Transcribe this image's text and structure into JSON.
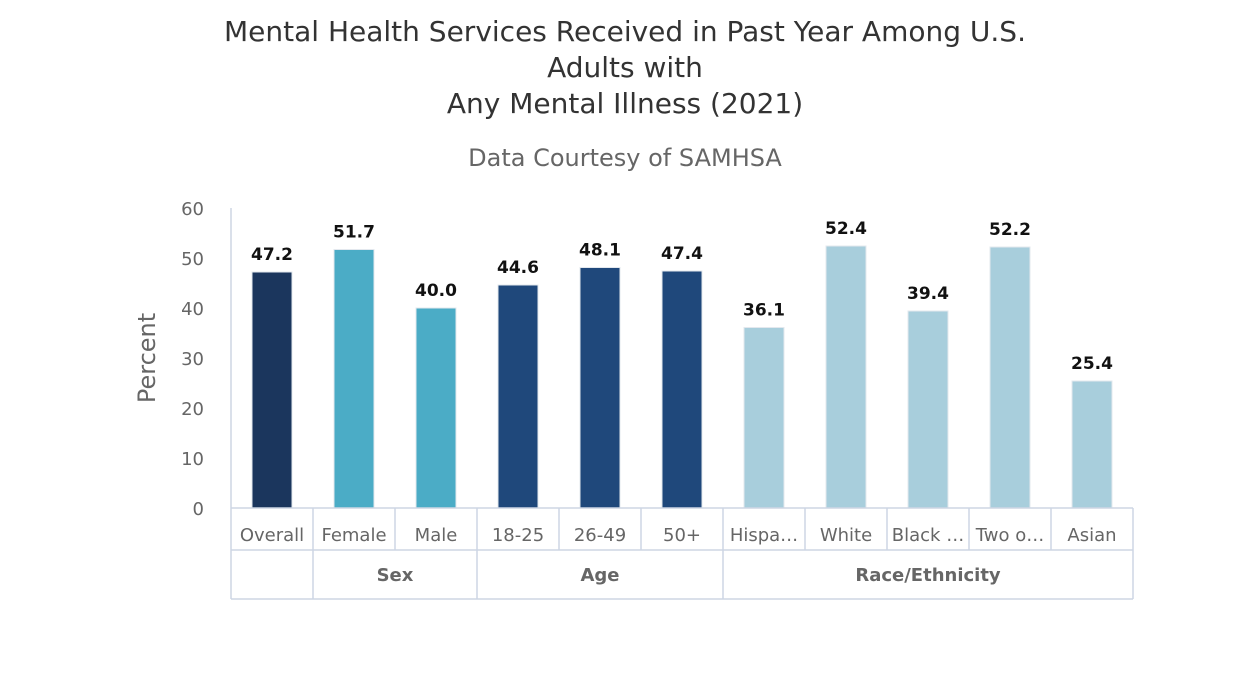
{
  "chart_data": {
    "type": "bar",
    "title_lines": [
      "Mental Health Services Received in Past Year Among U.S.",
      "Adults with",
      "Any Mental Illness (2021)"
    ],
    "subtitle": "Data Courtesy of SAMHSA",
    "xlabel": "",
    "ylabel": "Percent",
    "ylim": [
      0,
      60
    ],
    "yticks": [
      0,
      10,
      20,
      30,
      40,
      50,
      60
    ],
    "grid": false,
    "categories": [
      "Overall",
      "Female",
      "Male",
      "18-25",
      "26-49",
      "50+",
      "Hispa…",
      "White",
      "Black …",
      "Two o…",
      "Asian"
    ],
    "values": [
      47.2,
      51.7,
      40.0,
      44.6,
      48.1,
      47.4,
      36.1,
      52.4,
      39.4,
      52.2,
      25.4
    ],
    "data_labels": [
      "47.2",
      "51.7",
      "40.0",
      "44.6",
      "48.1",
      "47.4",
      "36.1",
      "52.4",
      "39.4",
      "52.2",
      "25.4"
    ],
    "groups": [
      {
        "label": "",
        "count": 1,
        "color": "#1b365d"
      },
      {
        "label": "Sex",
        "count": 2,
        "color": "#4bacc6"
      },
      {
        "label": "Age",
        "count": 3,
        "color": "#1f487b"
      },
      {
        "label": "Race/Ethnicity",
        "count": 5,
        "color": "#a8cedc"
      }
    ]
  }
}
